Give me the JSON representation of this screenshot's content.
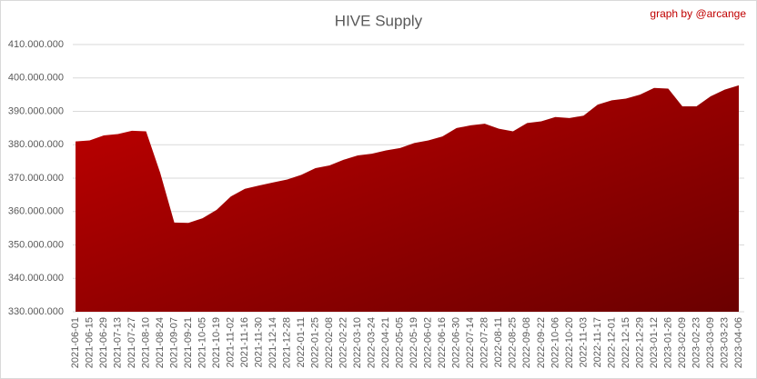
{
  "chart_data": {
    "type": "area",
    "title": "HIVE Supply",
    "credit": "graph by @arcange",
    "categories": [
      "2021-06-01",
      "2021-06-15",
      "2021-06-29",
      "2021-07-13",
      "2021-07-27",
      "2021-08-10",
      "2021-08-24",
      "2021-09-07",
      "2021-09-21",
      "2021-10-05",
      "2021-10-19",
      "2021-11-02",
      "2021-11-16",
      "2021-11-30",
      "2021-12-14",
      "2021-12-28",
      "2022-01-11",
      "2022-01-25",
      "2022-02-08",
      "2022-02-22",
      "2022-03-10",
      "2022-03-24",
      "2022-04-21",
      "2022-05-05",
      "2022-05-19",
      "2022-06-02",
      "2022-06-16",
      "2022-06-30",
      "2022-07-14",
      "2022-07-28",
      "2022-08-11",
      "2022-08-25",
      "2022-09-08",
      "2022-09-22",
      "2022-10-06",
      "2022-10-20",
      "2022-11-03",
      "2022-11-17",
      "2022-12-01",
      "2022-12-15",
      "2022-12-29",
      "2023-01-12",
      "2023-01-26",
      "2023-02-09",
      "2023-02-23",
      "2023-03-09",
      "2023-03-23",
      "2023-04-06"
    ],
    "values": [
      381000000,
      381300000,
      382800000,
      383200000,
      384200000,
      384000000,
      371600000,
      356700000,
      356600000,
      358000000,
      360500000,
      364500000,
      366800000,
      367800000,
      368700000,
      369600000,
      371000000,
      373000000,
      373800000,
      375500000,
      376800000,
      377300000,
      378300000,
      379000000,
      380500000,
      381300000,
      382500000,
      385000000,
      385800000,
      386300000,
      384800000,
      384000000,
      386500000,
      387000000,
      388300000,
      388000000,
      388700000,
      392000000,
      393300000,
      393800000,
      395000000,
      397000000,
      396800000,
      391500000,
      391500000,
      394500000,
      396500000,
      397800000
    ],
    "color_top": "#c00000",
    "color_bottom": "#6b0000",
    "ylim": [
      330000000,
      410000000
    ],
    "yticks": [
      {
        "value": 330000000,
        "label": "330.000.000"
      },
      {
        "value": 340000000,
        "label": "340.000.000"
      },
      {
        "value": 350000000,
        "label": "350.000.000"
      },
      {
        "value": 360000000,
        "label": "360.000.000"
      },
      {
        "value": 370000000,
        "label": "370.000.000"
      },
      {
        "value": 380000000,
        "label": "380.000.000"
      },
      {
        "value": 390000000,
        "label": "390.000.000"
      },
      {
        "value": 400000000,
        "label": "400.000.000"
      },
      {
        "value": 410000000,
        "label": "410.000.000"
      }
    ],
    "grid": true
  }
}
